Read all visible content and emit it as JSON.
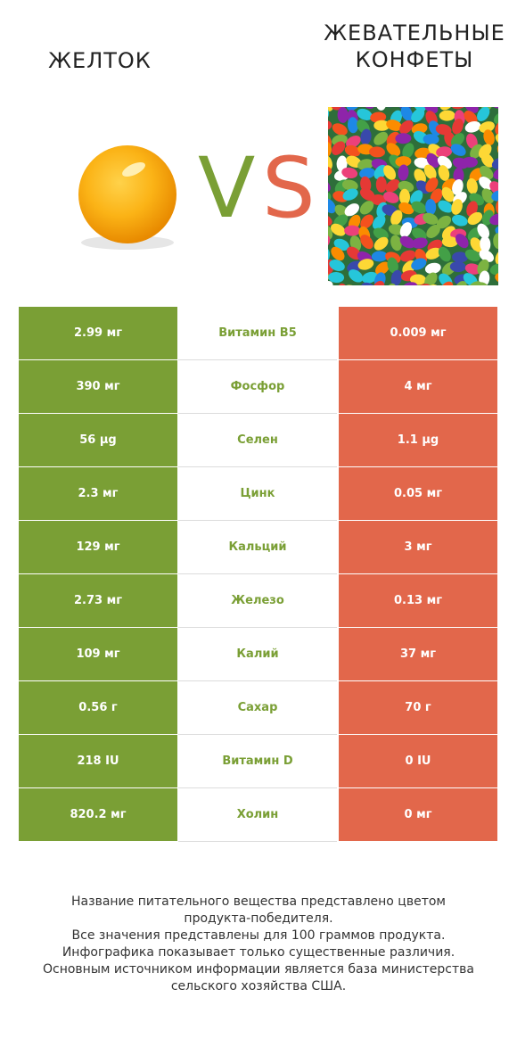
{
  "header": {
    "left_title": "ЖЕЛТОК",
    "right_title_line1": "ЖЕВАТЕЛЬНЫЕ",
    "right_title_line2": "КОНФЕТЫ",
    "vs_v": "V",
    "vs_s": "S"
  },
  "colors": {
    "winner_left": "#7a9f35",
    "winner_right": "#e2674b"
  },
  "rows": [
    {
      "left": "2.99 мг",
      "name": "Витамин B5",
      "right": "0.009 мг"
    },
    {
      "left": "390 мг",
      "name": "Фосфор",
      "right": "4 мг"
    },
    {
      "left": "56 µg",
      "name": "Селен",
      "right": "1.1 µg"
    },
    {
      "left": "2.3 мг",
      "name": "Цинк",
      "right": "0.05 мг"
    },
    {
      "left": "129 мг",
      "name": "Кальций",
      "right": "3 мг"
    },
    {
      "left": "2.73 мг",
      "name": "Железо",
      "right": "0.13 мг"
    },
    {
      "left": "109 мг",
      "name": "Калий",
      "right": "37 мг"
    },
    {
      "left": "0.56 г",
      "name": "Сахар",
      "right": "70 г"
    },
    {
      "left": "218 IU",
      "name": "Витамин D",
      "right": "0 IU"
    },
    {
      "left": "820.2 мг",
      "name": "Холин",
      "right": "0 мг"
    }
  ],
  "footnote": {
    "line1": "Название питательного вещества представлено цветом",
    "line2": "продукта-победителя.",
    "line3": "Все значения представлены для 100 граммов продукта.",
    "line4": "Инфографика показывает только существенные различия.",
    "line5": "Основным источником информации является база министерства",
    "line6": "сельского хозяйства США."
  }
}
